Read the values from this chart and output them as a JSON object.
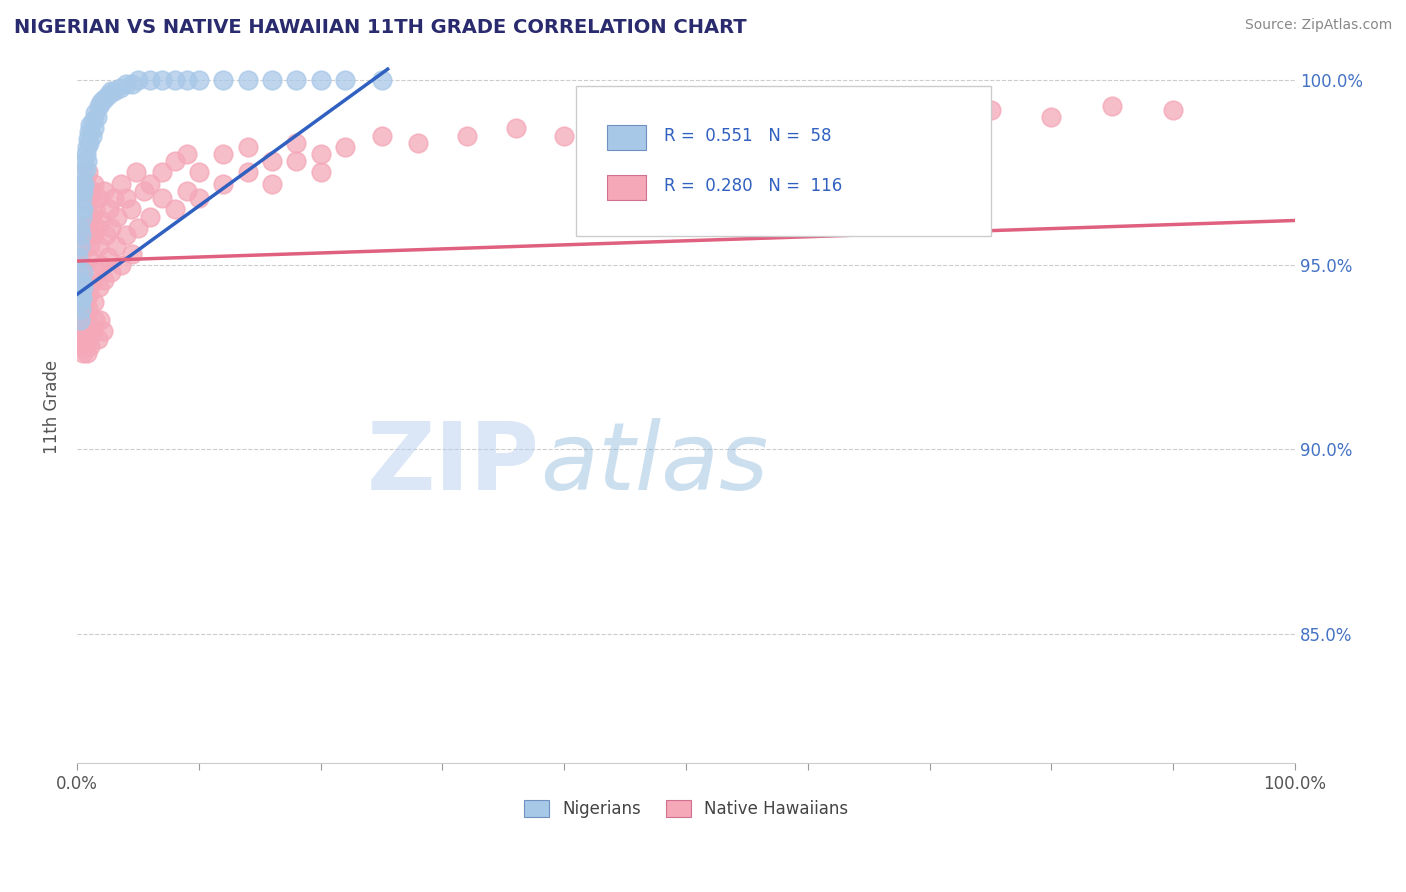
{
  "title": "NIGERIAN VS NATIVE HAWAIIAN 11TH GRADE CORRELATION CHART",
  "source": "Source: ZipAtlas.com",
  "ylabel": "11th Grade",
  "ytick_values": [
    0.85,
    0.9,
    0.95,
    1.0
  ],
  "ytick_labels": [
    "85.0%",
    "90.0%",
    "95.0%",
    "100.0%"
  ],
  "ylim": [
    0.815,
    1.008
  ],
  "xlim": [
    0.0,
    1.0
  ],
  "nigerian_color": "#a8c8e8",
  "native_hawaiian_color": "#f4a8b8",
  "trend_nigerian_color": "#3060c0",
  "trend_native_hawaiian_color": "#e06080",
  "watermark_zip": "ZIP",
  "watermark_atlas": "atlas",
  "nigerian_x": [
    0.001,
    0.001,
    0.002,
    0.002,
    0.003,
    0.003,
    0.003,
    0.004,
    0.004,
    0.004,
    0.005,
    0.005,
    0.005,
    0.006,
    0.006,
    0.007,
    0.007,
    0.008,
    0.008,
    0.009,
    0.01,
    0.01,
    0.011,
    0.012,
    0.013,
    0.014,
    0.015,
    0.016,
    0.018,
    0.02,
    0.022,
    0.025,
    0.028,
    0.03,
    0.035,
    0.04,
    0.045,
    0.05,
    0.06,
    0.07,
    0.08,
    0.09,
    0.1,
    0.12,
    0.14,
    0.16,
    0.18,
    0.2,
    0.22,
    0.25,
    0.002,
    0.002,
    0.003,
    0.003,
    0.004,
    0.004,
    0.005,
    0.005
  ],
  "nigerian_y": [
    0.952,
    0.948,
    0.96,
    0.955,
    0.965,
    0.958,
    0.97,
    0.963,
    0.968,
    0.972,
    0.975,
    0.97,
    0.965,
    0.978,
    0.972,
    0.98,
    0.976,
    0.982,
    0.978,
    0.984,
    0.986,
    0.983,
    0.988,
    0.985,
    0.989,
    0.987,
    0.991,
    0.99,
    0.993,
    0.994,
    0.995,
    0.996,
    0.997,
    0.997,
    0.998,
    0.999,
    0.999,
    1.0,
    1.0,
    1.0,
    1.0,
    1.0,
    1.0,
    1.0,
    1.0,
    1.0,
    1.0,
    1.0,
    1.0,
    1.0,
    0.94,
    0.935,
    0.942,
    0.938,
    0.945,
    0.941,
    0.948,
    0.944
  ],
  "native_hawaiian_x": [
    0.001,
    0.002,
    0.002,
    0.003,
    0.003,
    0.004,
    0.004,
    0.005,
    0.005,
    0.006,
    0.006,
    0.007,
    0.007,
    0.008,
    0.008,
    0.009,
    0.009,
    0.01,
    0.01,
    0.011,
    0.012,
    0.012,
    0.013,
    0.014,
    0.015,
    0.016,
    0.017,
    0.018,
    0.02,
    0.022,
    0.024,
    0.026,
    0.028,
    0.03,
    0.033,
    0.036,
    0.04,
    0.044,
    0.048,
    0.055,
    0.06,
    0.07,
    0.08,
    0.09,
    0.1,
    0.12,
    0.14,
    0.16,
    0.18,
    0.2,
    0.22,
    0.25,
    0.28,
    0.32,
    0.36,
    0.4,
    0.45,
    0.5,
    0.55,
    0.6,
    0.65,
    0.7,
    0.75,
    0.8,
    0.85,
    0.9,
    0.004,
    0.005,
    0.006,
    0.007,
    0.008,
    0.009,
    0.01,
    0.012,
    0.014,
    0.016,
    0.018,
    0.02,
    0.022,
    0.025,
    0.028,
    0.032,
    0.036,
    0.04,
    0.045,
    0.05,
    0.06,
    0.07,
    0.08,
    0.09,
    0.1,
    0.12,
    0.14,
    0.16,
    0.18,
    0.2,
    0.003,
    0.003,
    0.004,
    0.005,
    0.005,
    0.006,
    0.007,
    0.008,
    0.009,
    0.01,
    0.011,
    0.013,
    0.015,
    0.017,
    0.019,
    0.021
  ],
  "native_hawaiian_y": [
    0.952,
    0.96,
    0.948,
    0.958,
    0.965,
    0.945,
    0.962,
    0.955,
    0.97,
    0.95,
    0.968,
    0.945,
    0.972,
    0.958,
    0.965,
    0.952,
    0.975,
    0.96,
    0.968,
    0.955,
    0.97,
    0.963,
    0.958,
    0.972,
    0.965,
    0.96,
    0.968,
    0.955,
    0.962,
    0.97,
    0.958,
    0.965,
    0.96,
    0.968,
    0.963,
    0.972,
    0.968,
    0.965,
    0.975,
    0.97,
    0.972,
    0.975,
    0.978,
    0.98,
    0.975,
    0.98,
    0.982,
    0.978,
    0.983,
    0.98,
    0.982,
    0.985,
    0.983,
    0.985,
    0.987,
    0.985,
    0.988,
    0.986,
    0.988,
    0.987,
    0.99,
    0.988,
    0.992,
    0.99,
    0.993,
    0.992,
    0.938,
    0.942,
    0.936,
    0.94,
    0.944,
    0.938,
    0.942,
    0.945,
    0.94,
    0.948,
    0.944,
    0.95,
    0.946,
    0.952,
    0.948,
    0.955,
    0.95,
    0.958,
    0.953,
    0.96,
    0.963,
    0.968,
    0.965,
    0.97,
    0.968,
    0.972,
    0.975,
    0.972,
    0.978,
    0.975,
    0.93,
    0.928,
    0.932,
    0.926,
    0.934,
    0.928,
    0.932,
    0.926,
    0.934,
    0.93,
    0.928,
    0.932,
    0.935,
    0.93,
    0.935,
    0.932
  ]
}
